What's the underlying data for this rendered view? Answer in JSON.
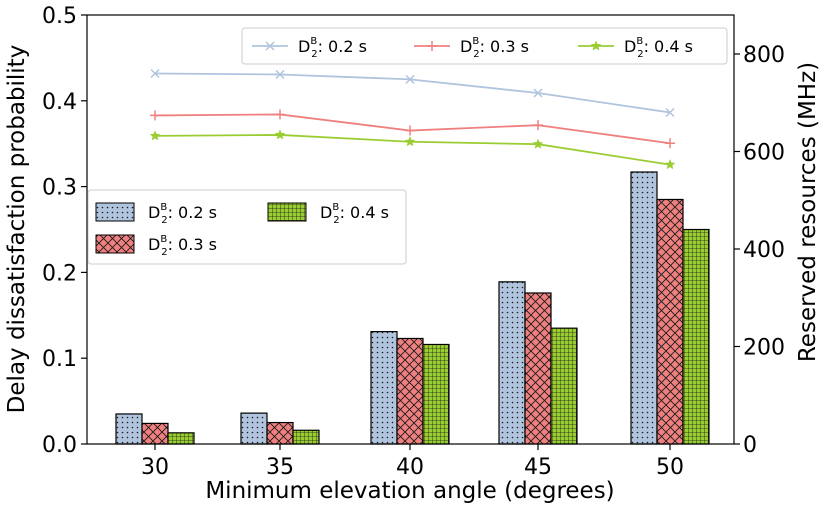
{
  "chart_data": {
    "type": "bar+line",
    "categories": [
      "30",
      "35",
      "40",
      "45",
      "50"
    ],
    "xlabel": "Minimum elevation angle (degrees)",
    "ylabel_left": "Delay dissatisfaction probability",
    "ylabel_right": "Reserved resources (MHz)",
    "ylim_left": [
      0,
      0.5
    ],
    "yticks_left": [
      "0.0",
      "0.1",
      "0.2",
      "0.3",
      "0.4",
      "0.5"
    ],
    "ylim_right": [
      0,
      880
    ],
    "yticks_right": [
      "0",
      "200",
      "400",
      "600",
      "800"
    ],
    "bar_series": [
      {
        "legend_base": "D",
        "legend_sub": "2",
        "legend_sup": "B",
        "legend_value": ": 0.2 s",
        "values": [
          0.035,
          0.036,
          0.131,
          0.189,
          0.317
        ],
        "color": "#b0c4de",
        "pattern": "dots"
      },
      {
        "legend_base": "D",
        "legend_sub": "2",
        "legend_sup": "B",
        "legend_value": ": 0.3 s",
        "values": [
          0.024,
          0.025,
          0.123,
          0.176,
          0.285
        ],
        "color": "#f08080",
        "pattern": "crosshatch"
      },
      {
        "legend_base": "D",
        "legend_sub": "2",
        "legend_sup": "B",
        "legend_value": ": 0.4 s",
        "values": [
          0.013,
          0.016,
          0.116,
          0.135,
          0.25
        ],
        "color": "#9acd32",
        "pattern": "grid"
      }
    ],
    "line_series": [
      {
        "legend_base": "D",
        "legend_sub": "2",
        "legend_sup": "B",
        "legend_value": ": 0.2 s",
        "values": [
          760,
          758,
          748,
          720,
          680
        ],
        "color": "#b0c4de",
        "marker": "x"
      },
      {
        "legend_base": "D",
        "legend_sub": "2",
        "legend_sup": "B",
        "legend_value": ": 0.3 s",
        "values": [
          674,
          676,
          643,
          654,
          617
        ],
        "color": "#f08080",
        "marker": "+"
      },
      {
        "legend_base": "D",
        "legend_sub": "2",
        "legend_sup": "B",
        "legend_value": ": 0.4 s",
        "values": [
          632,
          634,
          620,
          615,
          573
        ],
        "color": "#9acd32",
        "marker": "star"
      }
    ],
    "line_legend_position": "top-right",
    "bar_legend_position": "center-left",
    "grid": false
  }
}
